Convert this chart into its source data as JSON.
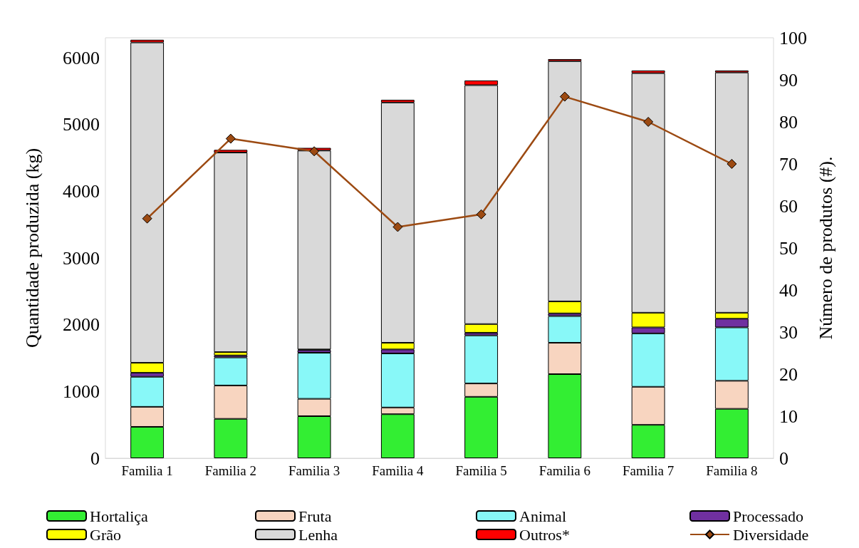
{
  "chart_data": {
    "type": "bar",
    "stacked": true,
    "ylabel": "Quantidade produzida (kg)",
    "y2label": "Número de produtos (#).",
    "categories": [
      "Familia 1",
      "Familia 2",
      "Familia 3",
      "Familia 4",
      "Familia 5",
      "Familia 6",
      "Familia 7",
      "Familia 8"
    ],
    "ylim": [
      0,
      6300
    ],
    "yticks": [
      0,
      1000,
      2000,
      3000,
      4000,
      5000,
      6000
    ],
    "y2lim": [
      0,
      100
    ],
    "y2ticks": [
      0,
      10,
      20,
      30,
      40,
      50,
      60,
      70,
      80,
      90,
      100
    ],
    "grid": false,
    "legend": "bottom",
    "series": [
      {
        "name": "Hortaliça",
        "color": "#33ee33",
        "values": [
          470,
          590,
          630,
          660,
          920,
          1260,
          500,
          740
        ]
      },
      {
        "name": "Fruta",
        "color": "#f8d5c0",
        "values": [
          300,
          500,
          260,
          100,
          200,
          470,
          570,
          420
        ]
      },
      {
        "name": "Animal",
        "color": "#88f8f8",
        "values": [
          450,
          420,
          690,
          810,
          720,
          400,
          800,
          800
        ]
      },
      {
        "name": "Processado",
        "color": "#7030a0",
        "values": [
          60,
          30,
          40,
          60,
          40,
          40,
          90,
          130
        ]
      },
      {
        "name": "Grão",
        "color": "#ffff00",
        "values": [
          150,
          50,
          10,
          100,
          130,
          180,
          220,
          90
        ]
      },
      {
        "name": "Lenha",
        "color": "#d9d9d9",
        "values": [
          4800,
          2990,
          2980,
          3600,
          3580,
          3600,
          3590,
          3600
        ]
      },
      {
        "name": "Outros*",
        "color": "#ff0000",
        "values": [
          40,
          40,
          40,
          40,
          70,
          30,
          40,
          30
        ]
      },
      {
        "name": "Diversidade",
        "type": "line",
        "axis": "y2",
        "marker": "diamond",
        "color": "#9c4a12",
        "values": [
          57,
          76,
          73,
          55,
          58,
          86,
          80,
          70
        ]
      }
    ]
  }
}
